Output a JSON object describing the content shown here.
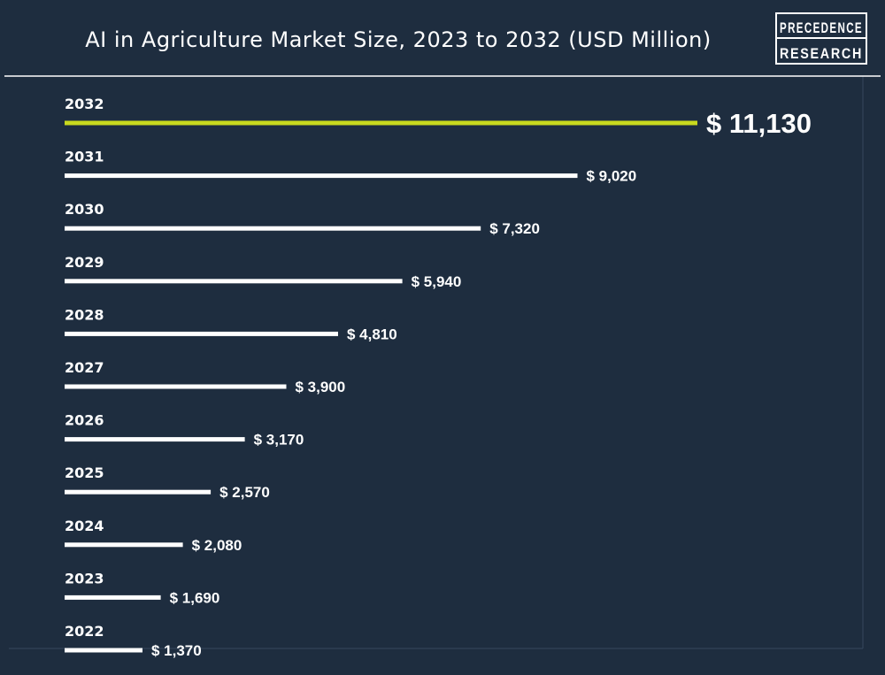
{
  "header": {
    "title": "AI in Agriculture Market Size, 2023 to 2032 (USD Million)",
    "logo_line1": "PRECEDENCE",
    "logo_line2": "RESEARCH"
  },
  "colors": {
    "background": "#1e2d3f",
    "bar": "#ffffff",
    "highlight_bar": "#c8d91e",
    "text": "#ffffff"
  },
  "chart_data": {
    "type": "bar",
    "orientation": "horizontal",
    "title": "AI in Agriculture Market Size, 2023 to 2032 (USD Million)",
    "categories": [
      "2032",
      "2031",
      "2030",
      "2029",
      "2028",
      "2027",
      "2026",
      "2025",
      "2024",
      "2023",
      "2022"
    ],
    "values": [
      11130,
      9020,
      7320,
      5940,
      4810,
      3900,
      3170,
      2570,
      2080,
      1690,
      1370
    ],
    "value_labels": [
      "$ 11,130",
      "$ 9,020",
      "$ 7,320",
      "$ 5,940",
      "$ 4,810",
      "$ 3,900",
      "$ 3,170",
      "$ 2,570",
      "$ 2,080",
      "$ 1,690",
      "$ 1,370"
    ],
    "highlight_category": "2032",
    "grid": false,
    "legend": "none"
  }
}
